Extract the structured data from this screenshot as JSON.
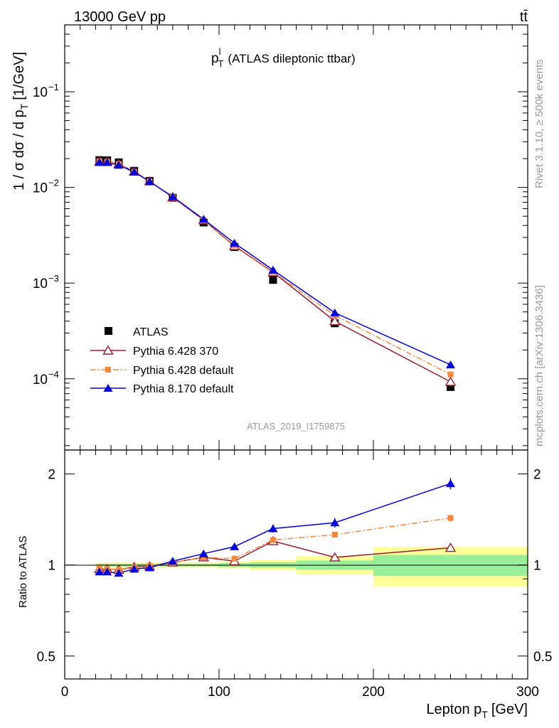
{
  "header": {
    "left": "13000 GeV pp",
    "right": "tt̄"
  },
  "side": {
    "rivet": "Rivet 3.1.10, ≥ 500k events",
    "mcplots": "mcplots.cern.ch [arXiv:1306.3436]"
  },
  "chart_data": [
    {
      "type": "scatter",
      "title_main": "p",
      "title_sup": "l",
      "title_sub": "T",
      "title_rest": "(ATLAS dileptonic ttbar)",
      "analysis_id": "ATLAS_2019_I1759875",
      "ylabel": "1 / σ  dσ / d p",
      "ylabel_sub": "T",
      "ylabel_unit": "[1/GeV]",
      "yscale": "log",
      "ylim": [
        1.8e-05,
        0.5
      ],
      "xlim": [
        0,
        300
      ],
      "yticks": [
        {
          "v": 0.1,
          "label": "10"
        },
        {
          "v": 0.01,
          "label": "10"
        },
        {
          "v": 0.001,
          "label": "10"
        },
        {
          "v": 0.0001,
          "label": "10"
        }
      ],
      "ytick_exps": [
        "−1",
        "−2",
        "−3",
        "−4"
      ],
      "legend_position": "lower-left",
      "series": [
        {
          "name": "ATLAS",
          "color": "#000000",
          "marker": "square",
          "x": [
            22.5,
            27.5,
            35,
            45,
            55,
            70,
            90,
            110,
            135,
            175,
            250
          ],
          "values": [
            0.0193,
            0.0192,
            0.0183,
            0.0149,
            0.0117,
            0.0078,
            0.0043,
            0.00238,
            0.00108,
            0.00038,
            8.2e-05
          ]
        },
        {
          "name": "Pythia 6.428 370",
          "color": "#9b1b30",
          "marker": "triangle-open",
          "line": "solid",
          "x": [
            22.5,
            27.5,
            35,
            45,
            55,
            70,
            90,
            110,
            135,
            175,
            250
          ],
          "values": [
            0.0187,
            0.0186,
            0.0176,
            0.0147,
            0.0116,
            0.0079,
            0.00455,
            0.00244,
            0.0013,
            0.0004,
            9.3e-05
          ]
        },
        {
          "name": "Pythia 6.428 default",
          "color": "#f5883a",
          "marker": "square-small",
          "line": "dashdot",
          "x": [
            22.5,
            27.5,
            35,
            45,
            55,
            70,
            90,
            110,
            135,
            175,
            250
          ],
          "values": [
            0.0188,
            0.0186,
            0.0176,
            0.0146,
            0.0116,
            0.0079,
            0.00455,
            0.00248,
            0.00131,
            0.00046,
            0.000111
          ]
        },
        {
          "name": "Pythia 8.170 default",
          "color": "#0000dd",
          "marker": "triangle",
          "line": "solid",
          "x": [
            22.5,
            27.5,
            35,
            45,
            55,
            70,
            90,
            110,
            135,
            175,
            250
          ],
          "values": [
            0.0183,
            0.0183,
            0.0171,
            0.0145,
            0.0115,
            0.008,
            0.00465,
            0.00262,
            0.00137,
            0.00049,
            0.00014
          ]
        }
      ]
    },
    {
      "type": "line",
      "ylabel": "Ratio to ATLAS",
      "xlabel": "Lepton p",
      "xlabel_sub": "T",
      "xlabel_unit": "[GeV]",
      "yscale": "log",
      "ylim": [
        0.42,
        2.4
      ],
      "xlim": [
        0,
        300
      ],
      "yticks": [
        {
          "v": 0.5,
          "label": "0.5"
        },
        {
          "v": 1,
          "label": "1"
        },
        {
          "v": 2,
          "label": "2"
        }
      ],
      "xticks": [
        {
          "v": 0,
          "label": "0"
        },
        {
          "v": 100,
          "label": "100"
        },
        {
          "v": 200,
          "label": "200"
        },
        {
          "v": 300,
          "label": "300"
        }
      ],
      "bins": [
        {
          "lo": 20,
          "hi": 25,
          "stat": 0.01,
          "tot": 0.02
        },
        {
          "lo": 25,
          "hi": 30,
          "stat": 0.01,
          "tot": 0.02
        },
        {
          "lo": 30,
          "hi": 40,
          "stat": 0.01,
          "tot": 0.02
        },
        {
          "lo": 40,
          "hi": 50,
          "stat": 0.01,
          "tot": 0.02
        },
        {
          "lo": 50,
          "hi": 60,
          "stat": 0.01,
          "tot": 0.02
        },
        {
          "lo": 60,
          "hi": 80,
          "stat": 0.01,
          "tot": 0.02
        },
        {
          "lo": 80,
          "hi": 100,
          "stat": 0.01,
          "tot": 0.02
        },
        {
          "lo": 100,
          "hi": 120,
          "stat": 0.015,
          "tot": 0.025
        },
        {
          "lo": 120,
          "hi": 150,
          "stat": 0.02,
          "tot": 0.04
        },
        {
          "lo": 150,
          "hi": 200,
          "stat": 0.035,
          "tot": 0.07
        },
        {
          "lo": 200,
          "hi": 300,
          "stat": 0.08,
          "tot": 0.15
        }
      ],
      "series": [
        {
          "name": "Pythia 6.428 370",
          "x": [
            22.5,
            27.5,
            35,
            45,
            55,
            70,
            90,
            110,
            135,
            175,
            250
          ],
          "values": [
            0.97,
            0.97,
            0.965,
            0.985,
            0.99,
            1.02,
            1.06,
            1.03,
            1.2,
            1.06,
            1.14
          ],
          "errors": [
            0.01,
            0.01,
            0.01,
            0.01,
            0.01,
            0.01,
            0.015,
            0.015,
            0.02,
            0.02,
            0.03
          ]
        },
        {
          "name": "Pythia 6.428 default",
          "x": [
            22.5,
            27.5,
            35,
            45,
            55,
            70,
            90,
            110,
            135,
            175,
            250
          ],
          "values": [
            0.975,
            0.97,
            0.965,
            0.98,
            0.995,
            1.02,
            1.06,
            1.05,
            1.21,
            1.26,
            1.43
          ],
          "errors": [
            0.01,
            0.01,
            0.01,
            0.01,
            0.01,
            0.01,
            0.015,
            0.015,
            0.02,
            0.025,
            0.04
          ]
        },
        {
          "name": "Pythia 8.170 default",
          "x": [
            22.5,
            27.5,
            35,
            45,
            55,
            70,
            90,
            110,
            135,
            175,
            250
          ],
          "values": [
            0.95,
            0.95,
            0.94,
            0.97,
            0.98,
            1.03,
            1.09,
            1.15,
            1.32,
            1.38,
            1.86
          ],
          "errors": [
            0.01,
            0.01,
            0.01,
            0.01,
            0.01,
            0.015,
            0.02,
            0.025,
            0.04,
            0.05,
            0.08
          ]
        }
      ]
    }
  ]
}
